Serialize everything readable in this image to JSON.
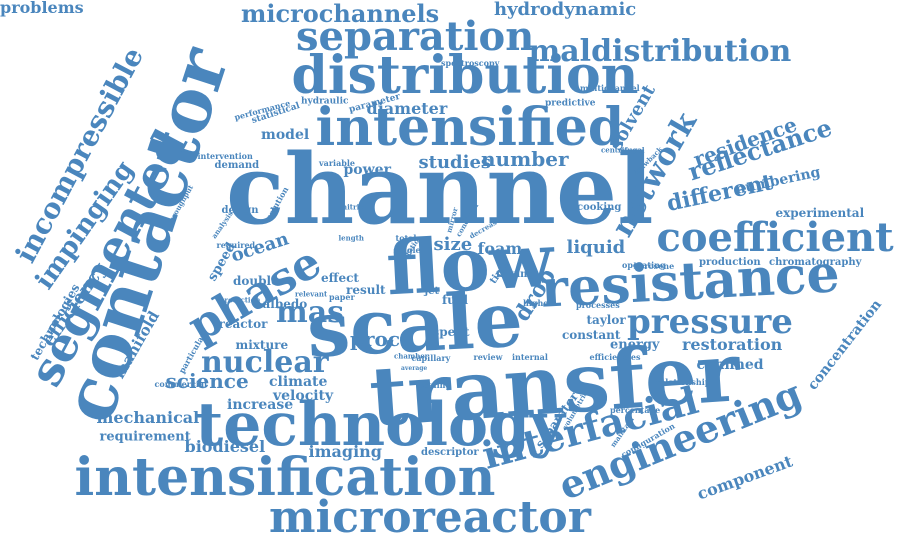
{
  "colors": {
    "word": "#4a86bd",
    "background": "#ffffff"
  },
  "words": [
    {
      "text": "channel",
      "weight": 1.0
    },
    {
      "text": "contactor",
      "weight": 0.92
    },
    {
      "text": "transfer",
      "weight": 0.9
    },
    {
      "text": "scale",
      "weight": 0.88
    },
    {
      "text": "flow",
      "weight": 0.86
    },
    {
      "text": "intensified",
      "weight": 0.8
    },
    {
      "text": "technology",
      "weight": 0.76
    },
    {
      "text": "distribution",
      "weight": 0.74
    },
    {
      "text": "intensification",
      "weight": 0.72
    },
    {
      "text": "resistance",
      "weight": 0.7
    },
    {
      "text": "segmented",
      "weight": 0.64
    },
    {
      "text": "phase",
      "weight": 0.64
    },
    {
      "text": "microreactor",
      "weight": 0.6
    },
    {
      "text": "engineering",
      "weight": 0.6
    },
    {
      "text": "interfacial",
      "weight": 0.6
    },
    {
      "text": "separation",
      "weight": 0.56
    },
    {
      "text": "coefficient",
      "weight": 0.56
    },
    {
      "text": "pressure",
      "weight": 0.52
    },
    {
      "text": "incompressible",
      "weight": 0.48
    },
    {
      "text": "network",
      "weight": 0.44
    },
    {
      "text": "maldistribution",
      "weight": 0.42
    },
    {
      "text": "microchannels",
      "weight": 0.4
    },
    {
      "text": "reflectance",
      "weight": 0.4
    },
    {
      "text": "nuclear",
      "weight": 0.4
    },
    {
      "text": "mas",
      "weight": 0.4
    },
    {
      "text": "impinging",
      "weight": 0.38
    },
    {
      "text": "drop",
      "weight": 0.36
    },
    {
      "text": "different",
      "weight": 0.34
    },
    {
      "text": "residence",
      "weight": 0.34
    },
    {
      "text": "hydrodynamic",
      "weight": 0.32
    },
    {
      "text": "number",
      "weight": 0.32
    },
    {
      "text": "science",
      "weight": 0.32
    },
    {
      "text": "studies",
      "weight": 0.3
    },
    {
      "text": "proc",
      "weight": 0.3
    },
    {
      "text": "efficiency",
      "weight": 0.3
    },
    {
      "text": "mechanical",
      "weight": 0.28
    },
    {
      "text": "solvent",
      "weight": 0.28
    },
    {
      "text": "restoration",
      "weight": 0.28
    },
    {
      "text": "diameter",
      "weight": 0.26
    },
    {
      "text": "biodiesel",
      "weight": 0.26
    },
    {
      "text": "imaging",
      "weight": 0.26
    },
    {
      "text": "size",
      "weight": 0.26
    },
    {
      "text": "foam",
      "weight": 0.26
    },
    {
      "text": "liquid",
      "weight": 0.26
    },
    {
      "text": "component",
      "weight": 0.26
    },
    {
      "text": "ocean",
      "weight": 0.26
    },
    {
      "text": "manifold",
      "weight": 0.26
    },
    {
      "text": "confined",
      "weight": 0.24
    },
    {
      "text": "concentration",
      "weight": 0.24
    },
    {
      "text": "climate",
      "weight": 0.24
    },
    {
      "text": "numbering",
      "weight": 0.22
    },
    {
      "text": "power",
      "weight": 0.22
    },
    {
      "text": "model",
      "weight": 0.22
    },
    {
      "text": "velocity",
      "weight": 0.22
    },
    {
      "text": "increase",
      "weight": 0.22
    },
    {
      "text": "requirement",
      "weight": 0.2
    },
    {
      "text": "energy",
      "weight": 0.2
    },
    {
      "text": "speed",
      "weight": 0.2
    },
    {
      "text": "technologies",
      "weight": 0.18
    },
    {
      "text": "separator",
      "weight": 0.18
    },
    {
      "text": "spent",
      "weight": 0.18
    },
    {
      "text": "fuel",
      "weight": 0.18
    },
    {
      "text": "result",
      "weight": 0.18
    },
    {
      "text": "experimental",
      "weight": 0.16
    },
    {
      "text": "taylor",
      "weight": 0.16
    },
    {
      "text": "constant",
      "weight": 0.16
    },
    {
      "text": "mixture",
      "weight": 0.16
    },
    {
      "text": "reactor",
      "weight": 0.16
    },
    {
      "text": "effect",
      "weight": 0.16
    },
    {
      "text": "double",
      "weight": 0.16
    },
    {
      "text": "albedo",
      "weight": 0.16
    },
    {
      "text": "chromatography",
      "weight": 0.14
    },
    {
      "text": "production",
      "weight": 0.14
    },
    {
      "text": "cooking",
      "weight": 0.14
    },
    {
      "text": "demand",
      "weight": 0.14
    },
    {
      "text": "design",
      "weight": 0.14
    },
    {
      "text": "descriptor",
      "weight": 0.14
    },
    {
      "text": "mixing",
      "weight": 0.14
    },
    {
      "text": "jet",
      "weight": 0.14
    },
    {
      "text": "time",
      "weight": 0.14
    },
    {
      "text": "hydraulic",
      "weight": 0.12
    },
    {
      "text": "statistical",
      "weight": 0.12
    },
    {
      "text": "parameter",
      "weight": 0.12
    },
    {
      "text": "predictive",
      "weight": 0.12
    },
    {
      "text": "performance",
      "weight": 0.12
    },
    {
      "text": "intervention",
      "weight": 0.12
    },
    {
      "text": "variable",
      "weight": 0.12
    },
    {
      "text": "multichannel",
      "weight": 0.1
    },
    {
      "text": "spectroscopy",
      "weight": 0.1
    },
    {
      "text": "commercial",
      "weight": 0.1
    },
    {
      "text": "particular",
      "weight": 0.1
    },
    {
      "text": "efficiencies",
      "weight": 0.1
    },
    {
      "text": "relationship",
      "weight": 0.1
    },
    {
      "text": "percentage",
      "weight": 0.1
    },
    {
      "text": "configuration",
      "weight": 0.1
    },
    {
      "text": "review",
      "weight": 0.1
    },
    {
      "text": "internal",
      "weight": 0.1
    },
    {
      "text": "capillary",
      "weight": 0.1
    },
    {
      "text": "scaling",
      "weight": 0.1
    },
    {
      "text": "paper",
      "weight": 0.1
    },
    {
      "text": "operating",
      "weight": 0.1
    },
    {
      "text": "processes",
      "weight": 0.1
    },
    {
      "text": "kerosene",
      "weight": 0.1
    },
    {
      "text": "higher",
      "weight": 0.1
    },
    {
      "text": "total",
      "weight": 0.1
    },
    {
      "text": "single",
      "weight": 0.08
    },
    {
      "text": "ratio",
      "weight": 0.08
    },
    {
      "text": "solution",
      "weight": 0.08
    },
    {
      "text": "required",
      "weight": 0.08
    },
    {
      "text": "analysis",
      "weight": 0.08
    },
    {
      "text": "throughput",
      "weight": 0.08
    },
    {
      "text": "nitric",
      "weight": 0.08
    },
    {
      "text": "length",
      "weight": 0.08
    },
    {
      "text": "centrifugal",
      "weight": 0.08
    },
    {
      "text": "drawback",
      "weight": 0.08
    },
    {
      "text": "decrease",
      "weight": 0.08
    },
    {
      "text": "maintain",
      "weight": 0.08
    },
    {
      "text": "volumetric",
      "weight": 0.08
    },
    {
      "text": "protection",
      "weight": 0.08
    },
    {
      "text": "relevant",
      "weight": 0.08
    },
    {
      "text": "chamber",
      "weight": 0.08
    },
    {
      "text": "average",
      "weight": 0.08
    },
    {
      "text": "mirror",
      "weight": 0.08
    },
    {
      "text": "condition",
      "weight": 0.08
    },
    {
      "text": "problems",
      "weight": 0.08
    }
  ]
}
